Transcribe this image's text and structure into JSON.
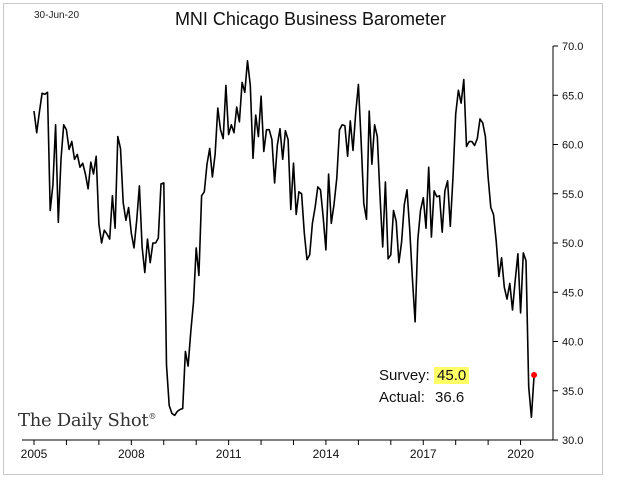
{
  "header": {
    "date": "30-Jun-20",
    "title": "MNI Chicago Business Barometer"
  },
  "brand": {
    "name": "The Daily Shot",
    "mark": "®"
  },
  "annotation": {
    "survey_label": "Survey:",
    "survey_value": "45.0",
    "actual_label": "Actual:",
    "actual_value": "36.6"
  },
  "colors": {
    "line": "#000000",
    "point": "#ff0000",
    "highlight": "#ffff66",
    "axis": "#000000"
  },
  "chart_data": {
    "type": "line",
    "title": "MNI Chicago Business Barometer",
    "xlabel": "",
    "ylabel": "",
    "x_range": [
      "2005-01",
      "2020-12"
    ],
    "ylim": [
      30,
      70
    ],
    "y_ticks": [
      "30.0",
      "35.0",
      "40.0",
      "45.0",
      "50.0",
      "55.0",
      "60.0",
      "65.0",
      "70.0"
    ],
    "x_ticks": [
      "2005",
      "2008",
      "2011",
      "2014",
      "2017",
      "2020"
    ],
    "grid": false,
    "y_axis_side": "right",
    "series": [
      {
        "values": [
          [
            "2005-01",
            63.4
          ],
          [
            "2005-02",
            61.2
          ],
          [
            "2005-03",
            63.3
          ],
          [
            "2005-04",
            65.2
          ],
          [
            "2005-05",
            65.1
          ],
          [
            "2005-06",
            65.3
          ],
          [
            "2005-07",
            53.3
          ],
          [
            "2005-08",
            55.9
          ],
          [
            "2005-09",
            62.0
          ],
          [
            "2005-10",
            52.1
          ],
          [
            "2005-11",
            58.5
          ],
          [
            "2005-12",
            62.0
          ],
          [
            "2006-01",
            61.5
          ],
          [
            "2006-02",
            59.5
          ],
          [
            "2006-03",
            60.3
          ],
          [
            "2006-04",
            58.5
          ],
          [
            "2006-05",
            59.0
          ],
          [
            "2006-06",
            57.7
          ],
          [
            "2006-07",
            58.1
          ],
          [
            "2006-08",
            57.0
          ],
          [
            "2006-09",
            55.5
          ],
          [
            "2006-10",
            58.2
          ],
          [
            "2006-11",
            57.0
          ],
          [
            "2006-12",
            58.8
          ],
          [
            "2007-01",
            51.9
          ],
          [
            "2007-02",
            50.0
          ],
          [
            "2007-03",
            51.3
          ],
          [
            "2007-04",
            50.9
          ],
          [
            "2007-05",
            50.4
          ],
          [
            "2007-06",
            54.8
          ],
          [
            "2007-07",
            51.5
          ],
          [
            "2007-08",
            60.8
          ],
          [
            "2007-09",
            59.6
          ],
          [
            "2007-10",
            54.1
          ],
          [
            "2007-11",
            52.3
          ],
          [
            "2007-12",
            53.6
          ],
          [
            "2008-01",
            51.0
          ],
          [
            "2008-02",
            49.5
          ],
          [
            "2008-03",
            52.3
          ],
          [
            "2008-04",
            55.8
          ],
          [
            "2008-05",
            49.6
          ],
          [
            "2008-06",
            47.0
          ],
          [
            "2008-07",
            50.4
          ],
          [
            "2008-08",
            48.0
          ],
          [
            "2008-09",
            50.0
          ],
          [
            "2008-10",
            50.0
          ],
          [
            "2008-11",
            50.5
          ],
          [
            "2008-12",
            56.0
          ],
          [
            "2009-01",
            56.1
          ],
          [
            "2009-02",
            37.6
          ],
          [
            "2009-03",
            33.5
          ],
          [
            "2009-04",
            32.7
          ],
          [
            "2009-05",
            32.5
          ],
          [
            "2009-06",
            32.9
          ],
          [
            "2009-07",
            33.1
          ],
          [
            "2009-08",
            33.2
          ],
          [
            "2009-09",
            39.0
          ],
          [
            "2009-10",
            37.5
          ],
          [
            "2009-11",
            41.0
          ],
          [
            "2009-12",
            44.0
          ],
          [
            "2010-01",
            49.5
          ],
          [
            "2010-02",
            46.7
          ],
          [
            "2010-03",
            54.8
          ],
          [
            "2010-04",
            55.2
          ],
          [
            "2010-05",
            58.0
          ],
          [
            "2010-06",
            59.6
          ],
          [
            "2010-07",
            56.7
          ],
          [
            "2010-08",
            59.0
          ],
          [
            "2010-09",
            63.7
          ],
          [
            "2010-10",
            61.5
          ],
          [
            "2010-11",
            60.6
          ],
          [
            "2010-12",
            66.0
          ],
          [
            "2011-01",
            61.0
          ],
          [
            "2011-02",
            62.0
          ],
          [
            "2011-03",
            61.2
          ],
          [
            "2011-04",
            63.8
          ],
          [
            "2011-05",
            62.3
          ],
          [
            "2011-06",
            66.3
          ],
          [
            "2011-07",
            65.3
          ],
          [
            "2011-08",
            68.5
          ],
          [
            "2011-09",
            66.0
          ],
          [
            "2011-10",
            58.6
          ],
          [
            "2011-11",
            63.0
          ],
          [
            "2011-12",
            60.8
          ],
          [
            "2012-01",
            64.9
          ],
          [
            "2012-02",
            59.3
          ],
          [
            "2012-03",
            61.5
          ],
          [
            "2012-04",
            61.5
          ],
          [
            "2012-05",
            60.5
          ],
          [
            "2012-06",
            56.1
          ],
          [
            "2012-07",
            59.9
          ],
          [
            "2012-08",
            61.6
          ],
          [
            "2012-09",
            58.5
          ],
          [
            "2012-10",
            61.4
          ],
          [
            "2012-11",
            60.5
          ],
          [
            "2012-12",
            53.4
          ],
          [
            "2013-01",
            58.1
          ],
          [
            "2013-02",
            52.9
          ],
          [
            "2013-03",
            55.2
          ],
          [
            "2013-04",
            55.0
          ],
          [
            "2013-05",
            51.0
          ],
          [
            "2013-06",
            48.3
          ],
          [
            "2013-07",
            48.8
          ],
          [
            "2013-08",
            52.0
          ],
          [
            "2013-09",
            53.6
          ],
          [
            "2013-10",
            55.7
          ],
          [
            "2013-11",
            55.4
          ],
          [
            "2013-12",
            52.6
          ],
          [
            "2014-01",
            49.3
          ],
          [
            "2014-02",
            57.0
          ],
          [
            "2014-03",
            52.0
          ],
          [
            "2014-04",
            53.9
          ],
          [
            "2014-05",
            56.6
          ],
          [
            "2014-06",
            61.5
          ],
          [
            "2014-07",
            62.0
          ],
          [
            "2014-08",
            61.9
          ],
          [
            "2014-09",
            58.8
          ],
          [
            "2014-10",
            62.4
          ],
          [
            "2014-11",
            59.4
          ],
          [
            "2014-12",
            63.2
          ],
          [
            "2015-01",
            66.1
          ],
          [
            "2015-02",
            60.4
          ],
          [
            "2015-03",
            54.0
          ],
          [
            "2015-04",
            52.4
          ],
          [
            "2015-05",
            63.4
          ],
          [
            "2015-06",
            58.0
          ],
          [
            "2015-07",
            62.0
          ],
          [
            "2015-08",
            60.8
          ],
          [
            "2015-09",
            54.8
          ],
          [
            "2015-10",
            49.6
          ],
          [
            "2015-11",
            56.2
          ],
          [
            "2015-12",
            48.4
          ],
          [
            "2016-01",
            48.8
          ],
          [
            "2016-02",
            53.3
          ],
          [
            "2016-03",
            52.2
          ],
          [
            "2016-04",
            48.0
          ],
          [
            "2016-05",
            50.1
          ],
          [
            "2016-06",
            53.9
          ],
          [
            "2016-07",
            55.4
          ],
          [
            "2016-08",
            51.4
          ],
          [
            "2016-09",
            46.4
          ],
          [
            "2016-10",
            42.0
          ],
          [
            "2016-11",
            50.3
          ],
          [
            "2016-12",
            53.3
          ],
          [
            "2017-01",
            54.6
          ],
          [
            "2017-02",
            51.5
          ],
          [
            "2017-03",
            57.7
          ],
          [
            "2017-04",
            50.6
          ],
          [
            "2017-05",
            55.3
          ],
          [
            "2017-06",
            54.7
          ],
          [
            "2017-07",
            54.8
          ],
          [
            "2017-08",
            51.1
          ],
          [
            "2017-09",
            55.3
          ],
          [
            "2017-10",
            56.3
          ],
          [
            "2017-11",
            51.7
          ],
          [
            "2017-12",
            56.7
          ],
          [
            "2018-01",
            63.1
          ],
          [
            "2018-02",
            65.5
          ],
          [
            "2018-03",
            64.2
          ],
          [
            "2018-04",
            66.6
          ],
          [
            "2018-05",
            59.8
          ],
          [
            "2018-06",
            60.3
          ],
          [
            "2018-07",
            60.3
          ],
          [
            "2018-08",
            59.9
          ],
          [
            "2018-09",
            60.6
          ],
          [
            "2018-10",
            62.6
          ],
          [
            "2018-11",
            62.2
          ],
          [
            "2018-12",
            60.8
          ],
          [
            "2019-01",
            56.7
          ],
          [
            "2019-02",
            53.6
          ],
          [
            "2019-03",
            52.9
          ],
          [
            "2019-04",
            50.2
          ],
          [
            "2019-05",
            46.6
          ],
          [
            "2019-06",
            48.5
          ],
          [
            "2019-07",
            45.5
          ],
          [
            "2019-08",
            44.3
          ],
          [
            "2019-09",
            45.9
          ],
          [
            "2019-10",
            43.2
          ],
          [
            "2019-11",
            46.2
          ],
          [
            "2019-12",
            48.9
          ],
          [
            "2020-01",
            42.9
          ],
          [
            "2020-02",
            49.0
          ],
          [
            "2020-03",
            48.2
          ],
          [
            "2020-04",
            35.4
          ],
          [
            "2020-05",
            32.3
          ],
          [
            "2020-06",
            36.6
          ]
        ]
      }
    ],
    "highlight_point": {
      "x": "2020-06",
      "y": 36.6
    }
  }
}
